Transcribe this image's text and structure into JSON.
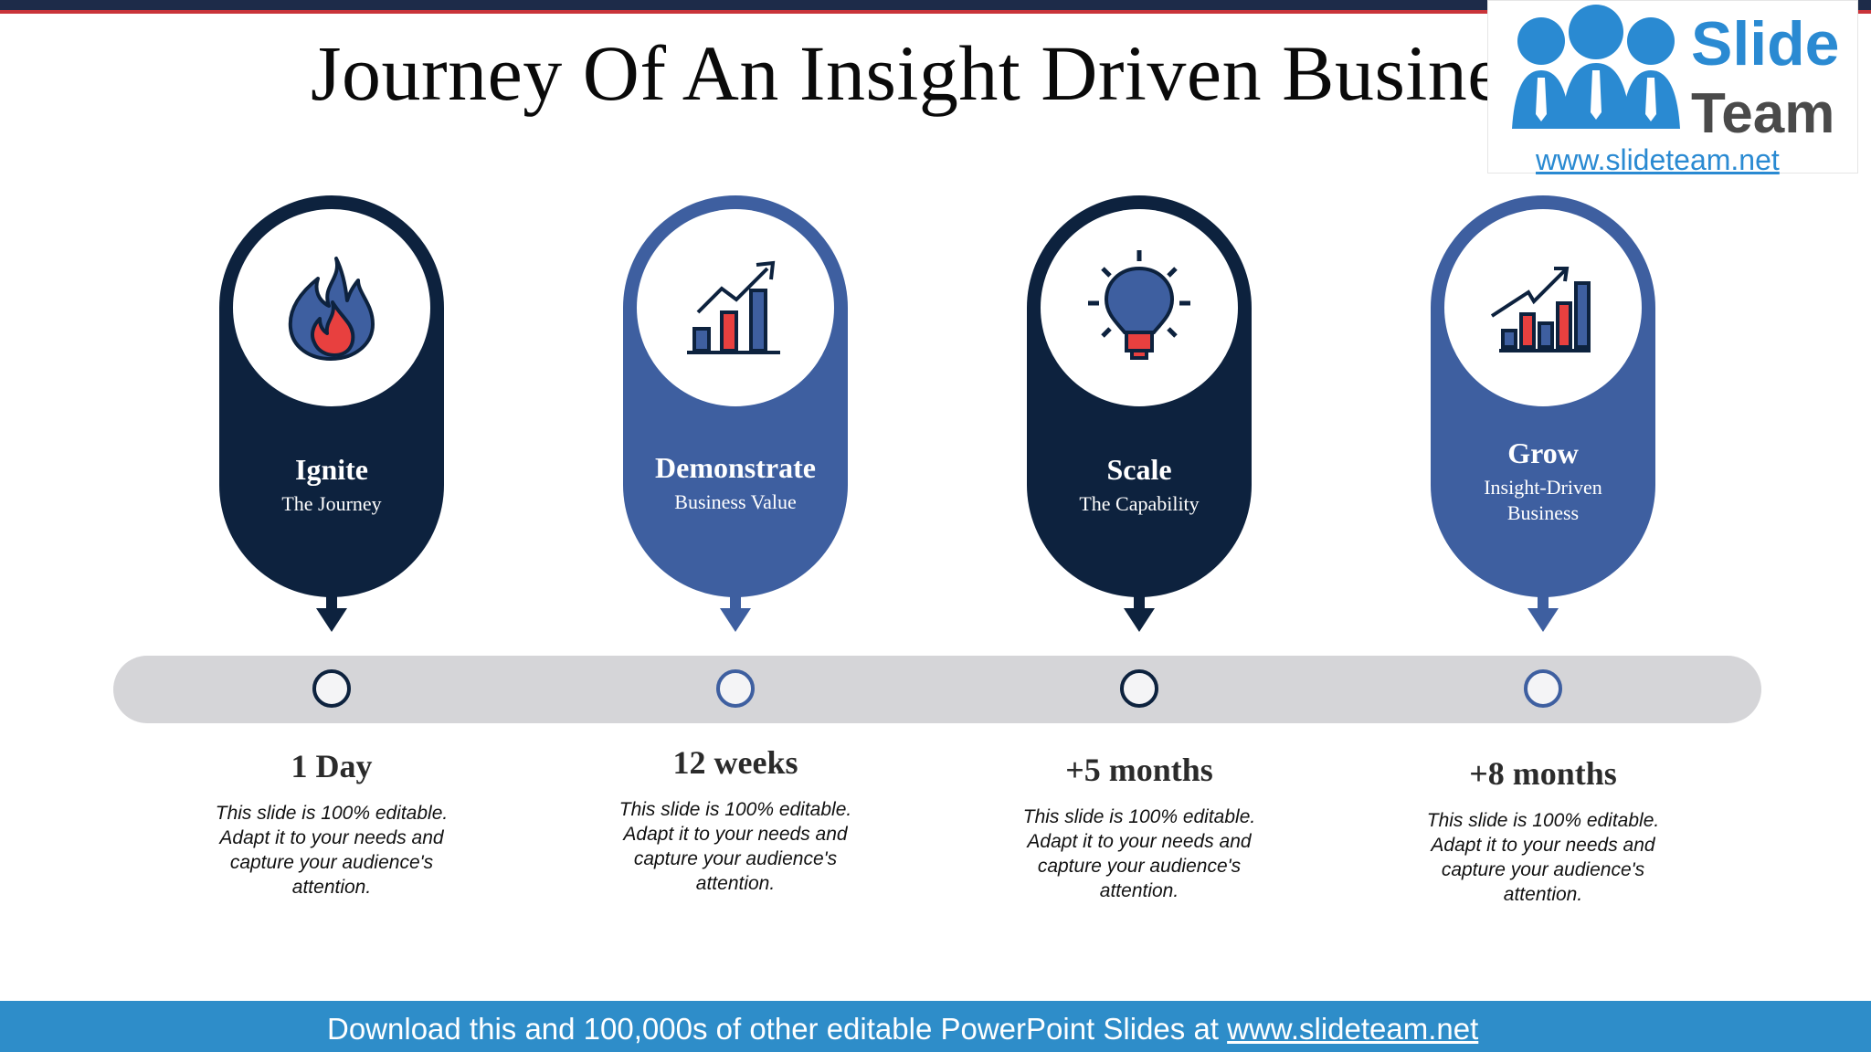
{
  "slide": {
    "title": "Journey Of An Insight Driven Business"
  },
  "logo": {
    "brand_word1": "Slide",
    "brand_word2": "Team",
    "url": "www.slideteam.net"
  },
  "colors": {
    "navy": "#0d223e",
    "blue": "#3e5fa0",
    "track": "#d5d5d8",
    "footer": "#2e8dc9",
    "accent_red": "#e8403f"
  },
  "stages": [
    {
      "title": "Ignite",
      "subtitle": "The Journey",
      "icon": "fire-icon",
      "timeframe": "1 Day",
      "description": "This slide is 100% editable. Adapt it to your needs and capture your audience's attention."
    },
    {
      "title": "Demonstrate",
      "subtitle": "Business Value",
      "icon": "growth-chart-icon",
      "timeframe": "12 weeks",
      "description": "This slide is 100% editable. Adapt it to your needs and capture your audience's attention."
    },
    {
      "title": "Scale",
      "subtitle": "The Capability",
      "icon": "lightbulb-icon",
      "timeframe": "+5 months",
      "description": "This slide is 100% editable. Adapt it to your needs and capture your audience's attention."
    },
    {
      "title": "Grow",
      "subtitle_line1": "Insight-Driven",
      "subtitle_line2": "Business",
      "icon": "bar-chart-trend-icon",
      "timeframe": "+8 months",
      "description": "This slide is 100% editable. Adapt it to your needs and capture your audience's attention."
    }
  ],
  "footer": {
    "text": "Download this and 100,000s of other editable PowerPoint Slides at ",
    "link": "www.slideteam.net"
  }
}
